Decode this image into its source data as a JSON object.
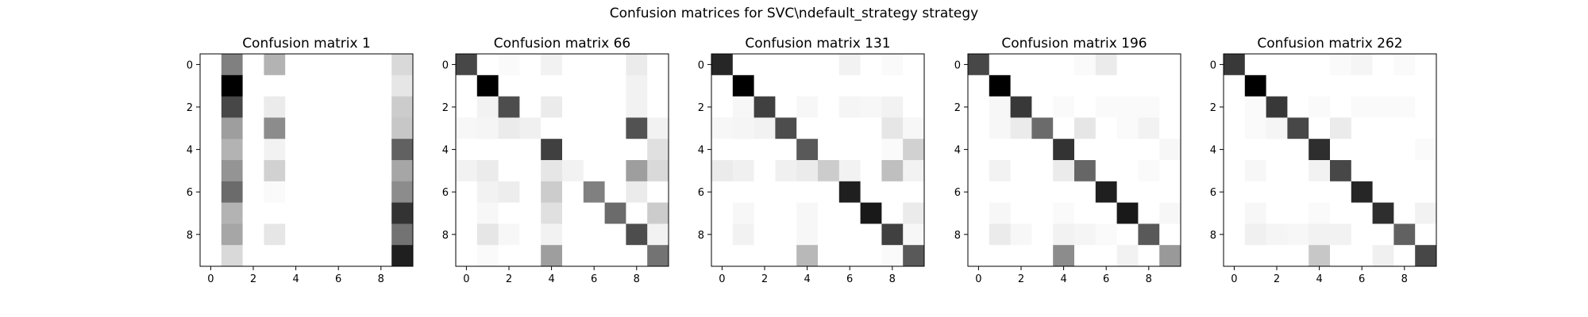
{
  "figure_title": "Confusion matrices for SVC\\ndefault_strategy strategy",
  "chart_data": [
    {
      "type": "heatmap",
      "title": "Confusion matrix 1",
      "x_ticks": [
        "0",
        "2",
        "4",
        "6",
        "8"
      ],
      "y_ticks": [
        "0",
        "2",
        "4",
        "6",
        "8"
      ],
      "xlim": [
        -0.5,
        9.5
      ],
      "ylim": [
        9.5,
        -0.5
      ],
      "colormap": "gray_r",
      "values": [
        [
          0,
          0.5,
          0,
          0.3,
          0,
          0,
          0,
          0,
          0,
          0.15
        ],
        [
          0,
          1.0,
          0,
          0,
          0,
          0,
          0,
          0,
          0,
          0.1
        ],
        [
          0,
          0.72,
          0,
          0.08,
          0,
          0,
          0,
          0,
          0,
          0.2
        ],
        [
          0,
          0.38,
          0,
          0.45,
          0,
          0,
          0,
          0,
          0,
          0.22
        ],
        [
          0,
          0.3,
          0,
          0.05,
          0,
          0,
          0,
          0,
          0,
          0.62
        ],
        [
          0,
          0.42,
          0,
          0.18,
          0,
          0,
          0,
          0,
          0,
          0.35
        ],
        [
          0,
          0.58,
          0,
          0.02,
          0,
          0,
          0,
          0,
          0,
          0.45
        ],
        [
          0,
          0.3,
          0,
          0,
          0,
          0,
          0,
          0,
          0,
          0.8
        ],
        [
          0,
          0.35,
          0,
          0.1,
          0,
          0,
          0,
          0,
          0,
          0.55
        ],
        [
          0,
          0.15,
          0,
          0,
          0,
          0,
          0,
          0,
          0,
          0.88
        ]
      ]
    },
    {
      "type": "heatmap",
      "title": "Confusion matrix 66",
      "x_ticks": [
        "0",
        "2",
        "4",
        "6",
        "8"
      ],
      "y_ticks": [
        "0",
        "2",
        "4",
        "6",
        "8"
      ],
      "xlim": [
        -0.5,
        9.5
      ],
      "ylim": [
        9.5,
        -0.5
      ],
      "colormap": "gray_r",
      "values": [
        [
          0.72,
          0,
          0.02,
          0,
          0.05,
          0,
          0,
          0,
          0.08,
          0
        ],
        [
          0,
          1.0,
          0,
          0,
          0,
          0,
          0,
          0,
          0.05,
          0
        ],
        [
          0,
          0.05,
          0.7,
          0,
          0.08,
          0,
          0,
          0,
          0.05,
          0
        ],
        [
          0.03,
          0.04,
          0.08,
          0.06,
          0,
          0,
          0,
          0,
          0.68,
          0.05
        ],
        [
          0,
          0,
          0,
          0,
          0.75,
          0,
          0,
          0,
          0,
          0.12
        ],
        [
          0.05,
          0.08,
          0,
          0,
          0.1,
          0.05,
          0,
          0,
          0.38,
          0.15
        ],
        [
          0,
          0.05,
          0.07,
          0,
          0.2,
          0,
          0.5,
          0,
          0.08,
          0
        ],
        [
          0,
          0.03,
          0,
          0,
          0.12,
          0,
          0,
          0.58,
          0,
          0.2
        ],
        [
          0,
          0.1,
          0.03,
          0,
          0.05,
          0,
          0,
          0,
          0.7,
          0.05
        ],
        [
          0,
          0.02,
          0,
          0,
          0.38,
          0,
          0,
          0,
          0,
          0.55
        ]
      ]
    },
    {
      "type": "heatmap",
      "title": "Confusion matrix 131",
      "x_ticks": [
        "0",
        "2",
        "4",
        "6",
        "8"
      ],
      "y_ticks": [
        "0",
        "2",
        "4",
        "6",
        "8"
      ],
      "xlim": [
        -0.5,
        9.5
      ],
      "ylim": [
        9.5,
        -0.5
      ],
      "colormap": "gray_r",
      "values": [
        [
          0.85,
          0,
          0,
          0,
          0,
          0,
          0.05,
          0,
          0.02,
          0
        ],
        [
          0,
          1.0,
          0,
          0,
          0,
          0,
          0,
          0,
          0,
          0
        ],
        [
          0,
          0.03,
          0.75,
          0,
          0.03,
          0,
          0.04,
          0.03,
          0.05,
          0
        ],
        [
          0.03,
          0.04,
          0.05,
          0.7,
          0,
          0,
          0,
          0,
          0.1,
          0.03
        ],
        [
          0,
          0,
          0,
          0,
          0.65,
          0,
          0,
          0,
          0.02,
          0.18
        ],
        [
          0.08,
          0.06,
          0,
          0.06,
          0.08,
          0.2,
          0.05,
          0,
          0.25,
          0.05
        ],
        [
          0,
          0,
          0,
          0,
          0,
          0,
          0.88,
          0,
          0,
          0
        ],
        [
          0,
          0.03,
          0,
          0,
          0.03,
          0,
          0,
          0.9,
          0,
          0.08
        ],
        [
          0,
          0.05,
          0,
          0,
          0.03,
          0,
          0,
          0,
          0.75,
          0.03
        ],
        [
          0,
          0,
          0,
          0,
          0.28,
          0,
          0,
          0,
          0.02,
          0.65
        ]
      ]
    },
    {
      "type": "heatmap",
      "title": "Confusion matrix 196",
      "x_ticks": [
        "0",
        "2",
        "4",
        "6",
        "8"
      ],
      "y_ticks": [
        "0",
        "2",
        "4",
        "6",
        "8"
      ],
      "xlim": [
        -0.5,
        9.5
      ],
      "ylim": [
        9.5,
        -0.5
      ],
      "colormap": "gray_r",
      "values": [
        [
          0.72,
          0,
          0,
          0,
          0,
          0.02,
          0.08,
          0,
          0,
          0
        ],
        [
          0,
          1.0,
          0,
          0,
          0,
          0,
          0,
          0,
          0,
          0
        ],
        [
          0,
          0.03,
          0.78,
          0,
          0.02,
          0,
          0.02,
          0.02,
          0.02,
          0
        ],
        [
          0,
          0.03,
          0.08,
          0.58,
          0,
          0.1,
          0,
          0.02,
          0.05,
          0
        ],
        [
          0,
          0,
          0,
          0,
          0.8,
          0,
          0,
          0,
          0,
          0.03
        ],
        [
          0,
          0.05,
          0,
          0,
          0.08,
          0.6,
          0,
          0,
          0.02,
          0
        ],
        [
          0,
          0,
          0,
          0,
          0,
          0,
          0.88,
          0,
          0,
          0
        ],
        [
          0,
          0.03,
          0,
          0,
          0.02,
          0,
          0,
          0.9,
          0,
          0.03
        ],
        [
          0,
          0.08,
          0.03,
          0,
          0.05,
          0.04,
          0.02,
          0,
          0.65,
          0
        ],
        [
          0,
          0,
          0,
          0,
          0.45,
          0,
          0,
          0.05,
          0,
          0.4
        ]
      ]
    },
    {
      "type": "heatmap",
      "title": "Confusion matrix 262",
      "x_ticks": [
        "0",
        "2",
        "4",
        "6",
        "8"
      ],
      "y_ticks": [
        "0",
        "2",
        "4",
        "6",
        "8"
      ],
      "xlim": [
        -0.5,
        9.5
      ],
      "ylim": [
        9.5,
        -0.5
      ],
      "colormap": "gray_r",
      "values": [
        [
          0.78,
          0,
          0,
          0,
          0,
          0.02,
          0.04,
          0,
          0.02,
          0
        ],
        [
          0,
          1.0,
          0,
          0,
          0,
          0,
          0,
          0,
          0,
          0
        ],
        [
          0,
          0.02,
          0.78,
          0,
          0.02,
          0,
          0.02,
          0.02,
          0.02,
          0
        ],
        [
          0,
          0.02,
          0.04,
          0.72,
          0,
          0.08,
          0,
          0,
          0,
          0
        ],
        [
          0,
          0,
          0,
          0,
          0.82,
          0,
          0,
          0,
          0,
          0.02
        ],
        [
          0,
          0.03,
          0,
          0,
          0.05,
          0.72,
          0,
          0,
          0,
          0
        ],
        [
          0,
          0,
          0,
          0,
          0,
          0,
          0.85,
          0,
          0,
          0
        ],
        [
          0,
          0.03,
          0,
          0,
          0.02,
          0,
          0,
          0.82,
          0,
          0.05
        ],
        [
          0,
          0.06,
          0.04,
          0.03,
          0.05,
          0.05,
          0,
          0,
          0.62,
          0
        ],
        [
          0,
          0,
          0,
          0,
          0.22,
          0,
          0,
          0.06,
          0,
          0.72
        ]
      ]
    }
  ]
}
